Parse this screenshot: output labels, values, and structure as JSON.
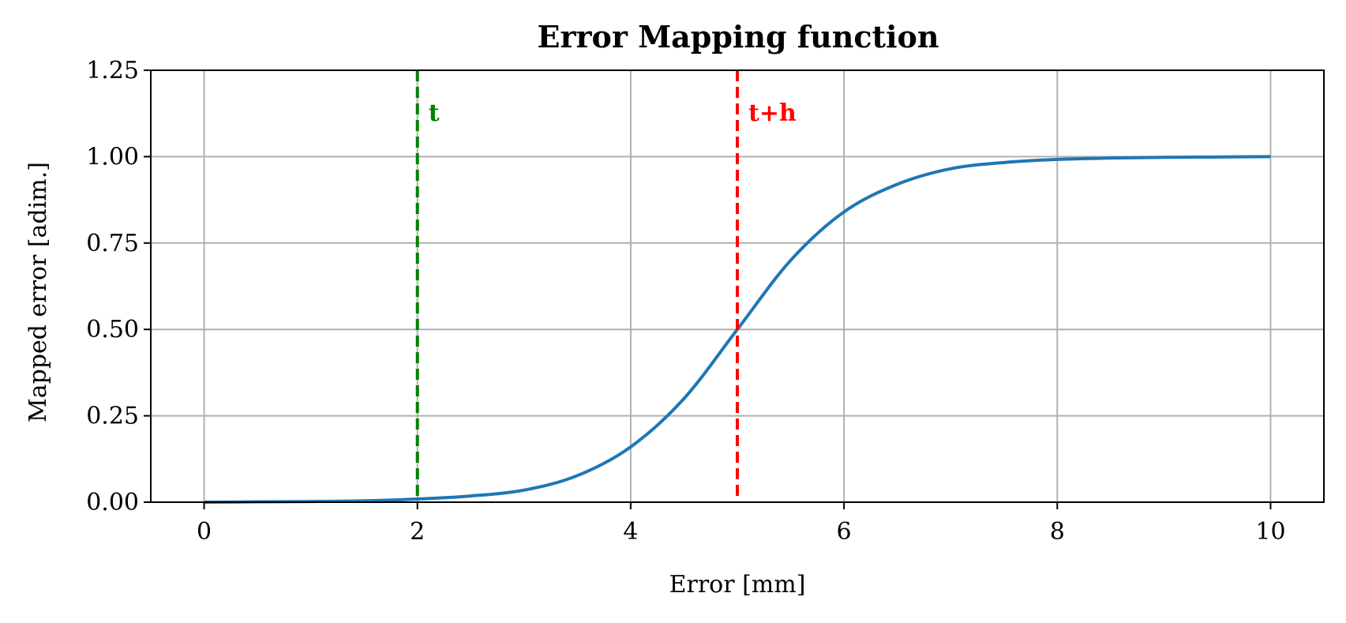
{
  "chart_data": {
    "type": "line",
    "title": "Error Mapping function",
    "xlabel": "Error [mm]",
    "ylabel": "Mapped error [adim.]",
    "xlim": [
      -0.5,
      10.5
    ],
    "ylim": [
      0,
      1.25
    ],
    "x_ticks": [
      0,
      2,
      4,
      6,
      8,
      10
    ],
    "x_tick_labels": [
      "0",
      "2",
      "4",
      "6",
      "8",
      "10"
    ],
    "y_ticks": [
      0,
      0.25,
      0.5,
      0.75,
      1.0,
      1.25
    ],
    "y_tick_labels": [
      "0.00",
      "0.25",
      "0.50",
      "0.75",
      "1.00",
      "1.25"
    ],
    "grid": true,
    "series": [
      {
        "color": "#1f77b4",
        "x": [
          0,
          0.5,
          1,
          1.5,
          2,
          2.5,
          3,
          3.5,
          4,
          4.5,
          5,
          5.5,
          6,
          6.5,
          7,
          7.5,
          8,
          8.5,
          9,
          9.5,
          10
        ],
        "y": [
          0.0,
          0.001,
          0.002,
          0.004,
          0.009,
          0.018,
          0.035,
          0.077,
          0.16,
          0.3,
          0.5,
          0.7,
          0.84,
          0.92,
          0.965,
          0.983,
          0.992,
          0.996,
          0.998,
          0.999,
          1.0
        ]
      }
    ],
    "annotations": [
      {
        "type": "vline",
        "x": 2,
        "label": "t",
        "color": "#008000",
        "style": "dashed"
      },
      {
        "type": "vline",
        "x": 5,
        "label": "t+h",
        "color": "#ff0000",
        "style": "dashed"
      }
    ]
  }
}
